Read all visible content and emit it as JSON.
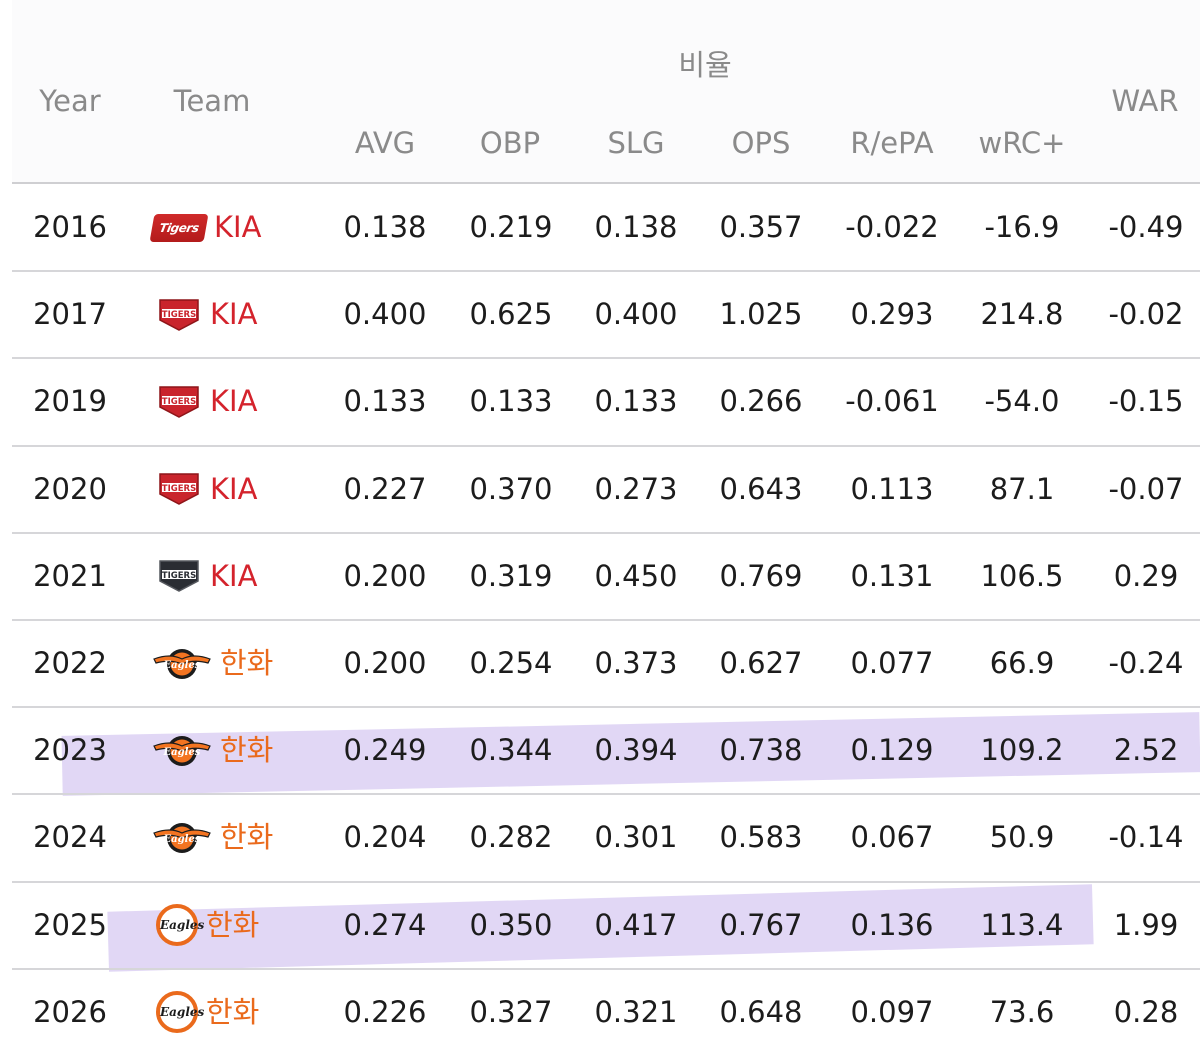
{
  "header": {
    "year": "Year",
    "team": "Team",
    "group": "비율",
    "war": "WAR",
    "columns": [
      "AVG",
      "OBP",
      "SLG",
      "OPS",
      "R/ePA",
      "wRC+"
    ]
  },
  "logos": {
    "tigers_old": "Tigers",
    "tigers_small": "TIGERS",
    "eagles": "Eagles"
  },
  "rows": [
    {
      "year": "2016",
      "team": "KIA",
      "logo": "tigers-script-icon",
      "avg": "0.138",
      "obp": "0.219",
      "slg": "0.138",
      "ops": "0.357",
      "repa": "-0.022",
      "wrc": "-16.9",
      "war": "-0.49"
    },
    {
      "year": "2017",
      "team": "KIA",
      "logo": "tigers-shield-icon",
      "avg": "0.400",
      "obp": "0.625",
      "slg": "0.400",
      "ops": "1.025",
      "repa": "0.293",
      "wrc": "214.8",
      "war": "-0.02"
    },
    {
      "year": "2019",
      "team": "KIA",
      "logo": "tigers-shield-icon",
      "avg": "0.133",
      "obp": "0.133",
      "slg": "0.133",
      "ops": "0.266",
      "repa": "-0.061",
      "wrc": "-54.0",
      "war": "-0.15"
    },
    {
      "year": "2020",
      "team": "KIA",
      "logo": "tigers-shield-icon",
      "avg": "0.227",
      "obp": "0.370",
      "slg": "0.273",
      "ops": "0.643",
      "repa": "0.113",
      "wrc": "87.1",
      "war": "-0.07"
    },
    {
      "year": "2021",
      "team": "KIA",
      "logo": "tigers-dark-shield-icon",
      "avg": "0.200",
      "obp": "0.319",
      "slg": "0.450",
      "ops": "0.769",
      "repa": "0.131",
      "wrc": "106.5",
      "war": "0.29"
    },
    {
      "year": "2022",
      "team": "한화",
      "logo": "eagles-wing-icon",
      "avg": "0.200",
      "obp": "0.254",
      "slg": "0.373",
      "ops": "0.627",
      "repa": "0.077",
      "wrc": "66.9",
      "war": "-0.24"
    },
    {
      "year": "2023",
      "team": "한화",
      "logo": "eagles-wing-icon",
      "avg": "0.249",
      "obp": "0.344",
      "slg": "0.394",
      "ops": "0.738",
      "repa": "0.129",
      "wrc": "109.2",
      "war": "2.52"
    },
    {
      "year": "2024",
      "team": "한화",
      "logo": "eagles-wing-icon",
      "avg": "0.204",
      "obp": "0.282",
      "slg": "0.301",
      "ops": "0.583",
      "repa": "0.067",
      "wrc": "50.9",
      "war": "-0.14"
    },
    {
      "year": "2025",
      "team": "한화",
      "logo": "eagles-circle-icon",
      "avg": "0.274",
      "obp": "0.350",
      "slg": "0.417",
      "ops": "0.767",
      "repa": "0.136",
      "wrc": "113.4",
      "war": "1.99"
    },
    {
      "year": "2026",
      "team": "한화",
      "logo": "eagles-circle-icon",
      "avg": "0.226",
      "obp": "0.327",
      "slg": "0.321",
      "ops": "0.648",
      "repa": "0.097",
      "wrc": "73.6",
      "war": "0.28"
    }
  ],
  "colors": {
    "kia": "#d4232c",
    "hanwha": "#ea6a1c",
    "highlight": "#dcd0f3",
    "header_text": "#8a8a8a"
  }
}
